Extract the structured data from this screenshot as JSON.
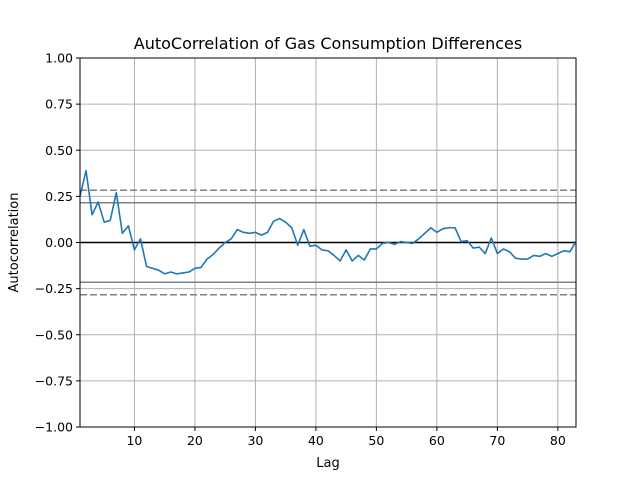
{
  "chart_data": {
    "type": "line",
    "title": "AutoCorrelation of Gas Consumption Differences",
    "xlabel": "Lag",
    "ylabel": "Autocorrelation",
    "xlim": [
      1,
      83
    ],
    "ylim": [
      -1.0,
      1.0
    ],
    "x_ticks": [
      10,
      20,
      30,
      40,
      50,
      60,
      70,
      80
    ],
    "y_ticks": [
      -1.0,
      -0.75,
      -0.5,
      -0.25,
      0.0,
      0.25,
      0.5,
      0.75,
      1.0
    ],
    "x_tick_labels": [
      "10",
      "20",
      "30",
      "40",
      "50",
      "60",
      "70",
      "80"
    ],
    "y_tick_labels": [
      "−1.00",
      "−0.75",
      "−0.50",
      "−0.25",
      "0.00",
      "0.25",
      "0.50",
      "0.75",
      "1.00"
    ],
    "grid": true,
    "series_color": "#1f77b4",
    "reference_lines": {
      "solid": [
        0.2153,
        -0.2153
      ],
      "dashed": [
        0.2829,
        -0.2829
      ],
      "zero": 0.0
    },
    "x": [
      1,
      2,
      3,
      4,
      5,
      6,
      7,
      8,
      9,
      10,
      11,
      12,
      13,
      14,
      15,
      16,
      17,
      18,
      19,
      20,
      21,
      22,
      23,
      24,
      25,
      26,
      27,
      28,
      29,
      30,
      31,
      32,
      33,
      34,
      35,
      36,
      37,
      38,
      39,
      40,
      41,
      42,
      43,
      44,
      45,
      46,
      47,
      48,
      49,
      50,
      51,
      52,
      53,
      54,
      55,
      56,
      57,
      58,
      59,
      60,
      61,
      62,
      63,
      64,
      65,
      66,
      67,
      68,
      69,
      70,
      71,
      72,
      73,
      74,
      75,
      76,
      77,
      78,
      79,
      80,
      81,
      82,
      83
    ],
    "values": [
      0.25,
      0.39,
      0.15,
      0.22,
      0.11,
      0.12,
      0.27,
      0.05,
      0.09,
      -0.04,
      0.02,
      -0.13,
      -0.14,
      -0.15,
      -0.17,
      -0.16,
      -0.17,
      -0.165,
      -0.16,
      -0.14,
      -0.135,
      -0.09,
      -0.065,
      -0.03,
      0.0,
      0.02,
      0.07,
      0.055,
      0.05,
      0.055,
      0.04,
      0.055,
      0.115,
      0.13,
      0.11,
      0.08,
      -0.015,
      0.07,
      -0.02,
      -0.015,
      -0.04,
      -0.045,
      -0.07,
      -0.1,
      -0.04,
      -0.1,
      -0.07,
      -0.095,
      -0.035,
      -0.035,
      -0.005,
      -0.0,
      -0.01,
      0.005,
      0.0,
      -0.005,
      0.02,
      0.05,
      0.08,
      0.055,
      0.075,
      0.08,
      0.08,
      0.005,
      0.01,
      -0.03,
      -0.025,
      -0.06,
      0.025,
      -0.06,
      -0.035,
      -0.05,
      -0.085,
      -0.09,
      -0.09,
      -0.07,
      -0.075,
      -0.06,
      -0.075,
      -0.06,
      -0.045,
      -0.05,
      0.005
    ]
  }
}
